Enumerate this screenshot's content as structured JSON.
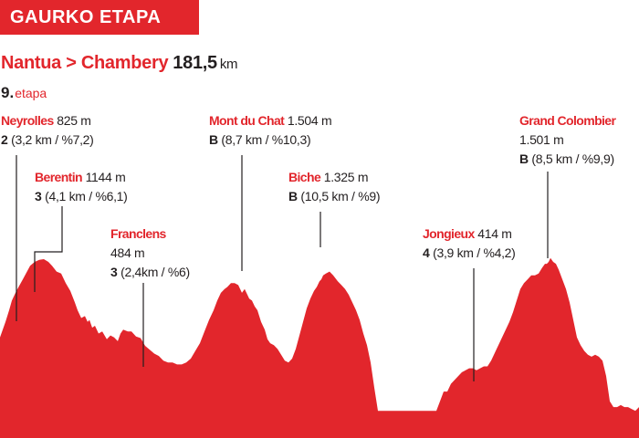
{
  "header": {
    "badge": "GAURKO ETAPA"
  },
  "stage": {
    "route": "Nantua > Chambery",
    "distance": "181,5",
    "distance_unit": "km",
    "number": "9.",
    "number_label": "etapa"
  },
  "colors": {
    "accent": "#e2262c",
    "text": "#231f20"
  },
  "chart_data": {
    "type": "area",
    "title": "",
    "xlabel": "",
    "ylabel": "",
    "axes_visible": false,
    "grid": false,
    "x": [
      0,
      6,
      10,
      13,
      18,
      25,
      33,
      38,
      43,
      48,
      53,
      57,
      62,
      67,
      72,
      77,
      82,
      85,
      89,
      93,
      96,
      98,
      101,
      104,
      108,
      112,
      117,
      121,
      125,
      129,
      132,
      135,
      140,
      144,
      149,
      154,
      159,
      164,
      169,
      174,
      179,
      184,
      189,
      194,
      199,
      204,
      209,
      214,
      219,
      224,
      229,
      234,
      238,
      242,
      246,
      249,
      253,
      257,
      261,
      265,
      268,
      271,
      273,
      276,
      279,
      282,
      286,
      290,
      293,
      296,
      300,
      304,
      308,
      312,
      316,
      320,
      324,
      328,
      332,
      336,
      340,
      344,
      347,
      350,
      352,
      354,
      357,
      361,
      365,
      370,
      374,
      378,
      382,
      386,
      390,
      394,
      398,
      402,
      406,
      410,
      414,
      420,
      430,
      440,
      450,
      460,
      470,
      478,
      482,
      486,
      490,
      494,
      498,
      502,
      506,
      510,
      514,
      518,
      522,
      526,
      530,
      534,
      538,
      542,
      546,
      550,
      554,
      558,
      562,
      566,
      570,
      574,
      578,
      582,
      586,
      590,
      594,
      597,
      599,
      601,
      603,
      606,
      609,
      612,
      616,
      620,
      624,
      628,
      632,
      636,
      640,
      644,
      648,
      652,
      656,
      660,
      664,
      668,
      672,
      676,
      680,
      684,
      688,
      692,
      696,
      700
    ],
    "y": [
      260,
      300,
      330,
      355,
      380,
      410,
      445,
      455,
      460,
      462,
      455,
      445,
      430,
      425,
      400,
      380,
      350,
      330,
      310,
      315,
      300,
      305,
      285,
      290,
      270,
      275,
      255,
      265,
      260,
      250,
      270,
      280,
      275,
      275,
      262,
      258,
      238,
      228,
      218,
      212,
      200,
      195,
      195,
      190,
      190,
      195,
      205,
      225,
      245,
      275,
      305,
      330,
      355,
      375,
      385,
      390,
      400,
      400,
      395,
      375,
      385,
      370,
      360,
      355,
      340,
      330,
      300,
      280,
      255,
      245,
      240,
      230,
      215,
      200,
      195,
      205,
      230,
      265,
      300,
      335,
      360,
      380,
      390,
      405,
      410,
      420,
      425,
      430,
      420,
      405,
      395,
      385,
      370,
      350,
      330,
      305,
      270,
      240,
      195,
      130,
      70,
      70,
      70,
      70,
      70,
      70,
      70,
      70,
      95,
      120,
      120,
      140,
      150,
      160,
      170,
      175,
      180,
      180,
      175,
      180,
      185,
      185,
      200,
      220,
      240,
      260,
      280,
      300,
      325,
      355,
      385,
      400,
      410,
      420,
      420,
      425,
      440,
      450,
      450,
      455,
      465,
      455,
      450,
      435,
      410,
      385,
      350,
      305,
      260,
      240,
      225,
      215,
      210,
      215,
      210,
      200,
      160,
      95,
      80,
      80,
      85,
      80,
      80,
      75,
      70,
      80
    ],
    "climbs": [
      {
        "name": "Neyrolles",
        "altitude": "825 m",
        "category": "2",
        "detail": "(3,2 km / %7,2)"
      },
      {
        "name": "Berentin",
        "altitude": "1144 m",
        "category": "3",
        "detail": "(4,1 km / %6,1)"
      },
      {
        "name": "Franclens",
        "altitude": "484 m",
        "category": "3",
        "detail": "(2,4km / %6)"
      },
      {
        "name": "Mont du Chat",
        "altitude": "1.504 m",
        "category": "B",
        "detail": "(8,7 km / %10,3)"
      },
      {
        "name": "Biche",
        "altitude": "1.325 m",
        "category": "B",
        "detail": "(10,5 km / %9)"
      },
      {
        "name": "Jongieux",
        "altitude": "414 m",
        "category": "4",
        "detail": "(3,9 km / %4,2)"
      },
      {
        "name": "Grand Colombier",
        "altitude": "1.501 m",
        "category": "B",
        "detail": "(8,5 km / %9,9)"
      }
    ]
  }
}
